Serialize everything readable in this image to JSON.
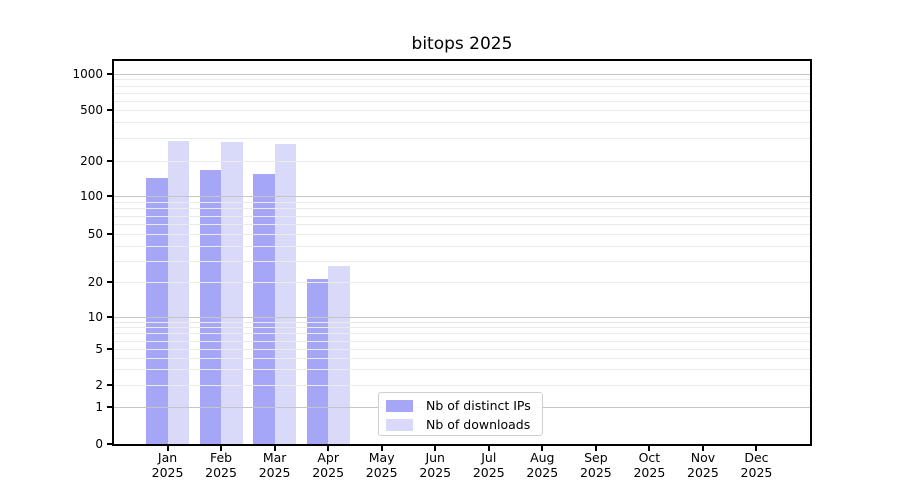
{
  "chart_data": {
    "type": "bar",
    "title": "bitops 2025",
    "categories": [
      "Jan",
      "Feb",
      "Mar",
      "Apr",
      "May",
      "Jun",
      "Jul",
      "Aug",
      "Sep",
      "Oct",
      "Nov",
      "Dec"
    ],
    "x_year_label": "2025",
    "series": [
      {
        "name": "Nb of distinct IPs",
        "color": "#a5a6f6",
        "values": [
          142,
          167,
          156,
          21,
          0,
          0,
          0,
          0,
          0,
          0,
          0,
          0
        ]
      },
      {
        "name": "Nb of downloads",
        "color": "#d9dafa",
        "values": [
          286,
          283,
          270,
          27,
          0,
          0,
          0,
          0,
          0,
          0,
          0,
          0
        ]
      }
    ],
    "y_ticks": [
      0,
      1,
      2,
      5,
      10,
      20,
      50,
      100,
      200,
      500,
      1000
    ],
    "ylim": [
      0,
      1000
    ],
    "y_scale": "symlog",
    "grid": true,
    "legend": {
      "entries": [
        "Nb of distinct IPs",
        "Nb of downloads"
      ],
      "position": "bottom-center"
    },
    "colors": {
      "major_grid": "#c5c5c5",
      "minor_grid": "#eaeaea",
      "spine": "#000000",
      "text": "#000000"
    }
  }
}
